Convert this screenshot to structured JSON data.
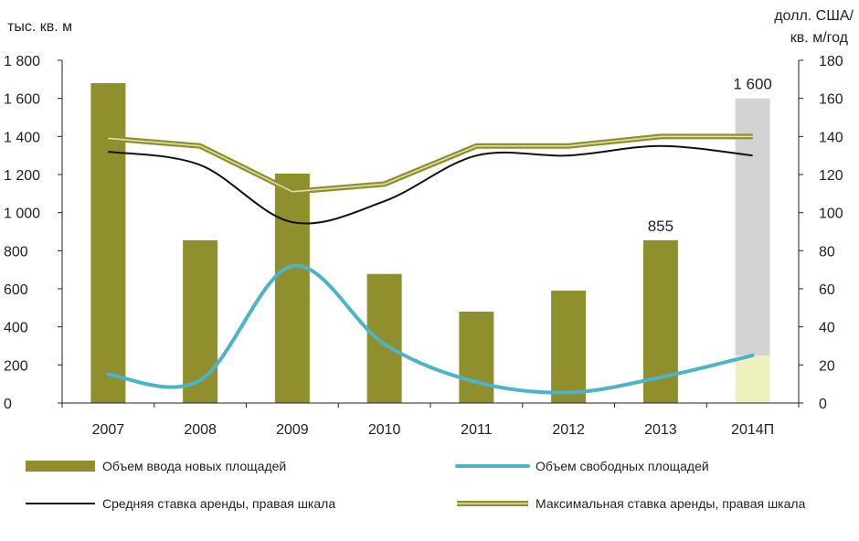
{
  "chart_data": {
    "type": "bar",
    "categories": [
      "2007",
      "2008",
      "2009",
      "2010",
      "2011",
      "2012",
      "2013",
      "2014П"
    ],
    "y_left": {
      "label": "тыс. кв. м",
      "ylim": [
        0,
        1800
      ],
      "ticks": [
        0,
        200,
        400,
        600,
        800,
        1000,
        1200,
        1400,
        1600,
        1800
      ],
      "tick_labels": [
        "0",
        "200",
        "400",
        "600",
        "800",
        "1 000",
        "1 200",
        "1 400",
        "1 600",
        "1 800"
      ]
    },
    "y_right": {
      "label_line1": "долл. США/",
      "label_line2": "кв. м/год",
      "ylim": [
        0,
        180
      ],
      "ticks": [
        0,
        20,
        40,
        60,
        80,
        100,
        120,
        140,
        160,
        180
      ],
      "tick_labels": [
        "0",
        "20",
        "40",
        "60",
        "80",
        "100",
        "120",
        "140",
        "160",
        "180"
      ]
    },
    "bars": {
      "name": "Объем ввода новых площадей",
      "color": "#8f8f2e",
      "values": [
        1680,
        855,
        1205,
        678,
        480,
        590,
        855,
        1600
      ],
      "forecast_color_top": "#d3d3d3",
      "forecast_color_bottom": "#eef0bd",
      "forecast_split": 250
    },
    "vacancy": {
      "name": "Объем свободных площадей",
      "color": "#4db3c9",
      "axis": "left",
      "values": [
        150,
        120,
        720,
        310,
        110,
        55,
        135,
        250
      ]
    },
    "avg_rent": {
      "name": "Средняя ставка аренды, правая шкала",
      "color": "#111111",
      "axis": "right",
      "values": [
        132,
        125,
        95,
        106,
        130,
        130,
        135,
        130
      ]
    },
    "max_rent": {
      "name": "Максимальная ставка аренды, правая шкала",
      "color": "#8f8f2e",
      "axis": "right",
      "values": [
        139,
        135,
        111,
        115,
        135,
        135,
        140,
        140
      ]
    },
    "data_labels": [
      {
        "category_index": 6,
        "text": "855"
      },
      {
        "category_index": 7,
        "text": "1 600"
      }
    ],
    "legend_placement": "bottom",
    "grid": false
  }
}
